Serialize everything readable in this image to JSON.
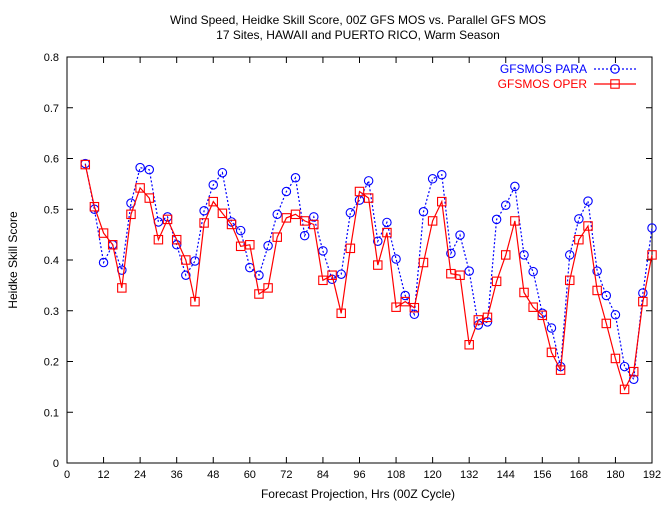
{
  "chart_data": {
    "type": "line",
    "title": "Wind Speed, Heidke Skill Score, 00Z GFS MOS vs. Parallel GFS MOS",
    "subtitle": "17 Sites, HAWAII and PUERTO RICO, Warm Season",
    "xlabel": "Forecast Projection, Hrs (00Z Cycle)",
    "ylabel": "Heidke Skill Score",
    "xlim": [
      0,
      192
    ],
    "ylim": [
      0,
      0.8
    ],
    "xticks": [
      0,
      12,
      24,
      36,
      48,
      60,
      72,
      84,
      96,
      108,
      120,
      132,
      144,
      156,
      168,
      180,
      192
    ],
    "xtick_labels": [
      "0",
      "12",
      "24",
      "36",
      "48",
      "60",
      "72",
      "84",
      "96",
      "108",
      "120",
      "132",
      "144",
      "156",
      "168",
      "180",
      "192"
    ],
    "yticks": [
      0,
      0.1,
      0.2,
      0.3,
      0.4,
      0.5,
      0.6,
      0.7,
      0.8
    ],
    "ytick_labels": [
      "0",
      "0.1",
      "0.2",
      "0.3",
      "0.4",
      "0.5",
      "0.6",
      "0.7",
      "0.8"
    ],
    "grid": false,
    "legend_position": "top-right",
    "x": [
      6,
      9,
      12,
      15,
      18,
      21,
      24,
      27,
      30,
      33,
      36,
      39,
      42,
      45,
      48,
      51,
      54,
      57,
      60,
      63,
      66,
      69,
      72,
      75,
      78,
      81,
      84,
      87,
      90,
      93,
      96,
      99,
      102,
      105,
      108,
      111,
      114,
      117,
      120,
      123,
      126,
      129,
      132,
      135,
      138,
      141,
      144,
      147,
      150,
      153,
      156,
      159,
      162,
      165,
      168,
      171,
      174,
      177,
      180,
      183,
      186,
      189,
      192
    ],
    "series": [
      {
        "name": "GFSMOS PARA",
        "color": "#0000ff",
        "marker": "circle",
        "line_style": "dotted",
        "values": [
          0.59,
          0.5,
          0.395,
          0.43,
          0.38,
          0.512,
          0.582,
          0.578,
          0.475,
          0.485,
          0.43,
          0.37,
          0.398,
          0.497,
          0.548,
          0.572,
          0.475,
          0.458,
          0.385,
          0.37,
          0.428,
          0.49,
          0.535,
          0.562,
          0.448,
          0.485,
          0.418,
          0.362,
          0.372,
          0.493,
          0.518,
          0.556,
          0.437,
          0.474,
          0.402,
          0.33,
          0.293,
          0.495,
          0.56,
          0.568,
          0.413,
          0.449,
          0.378,
          0.272,
          0.278,
          0.48,
          0.508,
          0.545,
          0.41,
          0.377,
          0.295,
          0.266,
          0.19,
          0.41,
          0.481,
          0.516,
          0.378,
          0.33,
          0.292,
          0.19,
          0.165,
          0.335,
          0.463
        ]
      },
      {
        "name": "GFSMOS OPER",
        "color": "#ff0000",
        "marker": "square",
        "line_style": "solid",
        "values": [
          0.588,
          0.505,
          0.453,
          0.43,
          0.345,
          0.49,
          0.542,
          0.522,
          0.44,
          0.48,
          0.44,
          0.4,
          0.318,
          0.473,
          0.515,
          0.492,
          0.47,
          0.427,
          0.43,
          0.333,
          0.345,
          0.445,
          0.483,
          0.49,
          0.477,
          0.47,
          0.36,
          0.37,
          0.295,
          0.423,
          0.535,
          0.522,
          0.39,
          0.454,
          0.307,
          0.318,
          0.306,
          0.395,
          0.477,
          0.515,
          0.373,
          0.37,
          0.233,
          0.282,
          0.287,
          0.358,
          0.41,
          0.477,
          0.336,
          0.307,
          0.291,
          0.218,
          0.183,
          0.36,
          0.44,
          0.467,
          0.34,
          0.275,
          0.206,
          0.145,
          0.18,
          0.318,
          0.41
        ]
      }
    ]
  }
}
